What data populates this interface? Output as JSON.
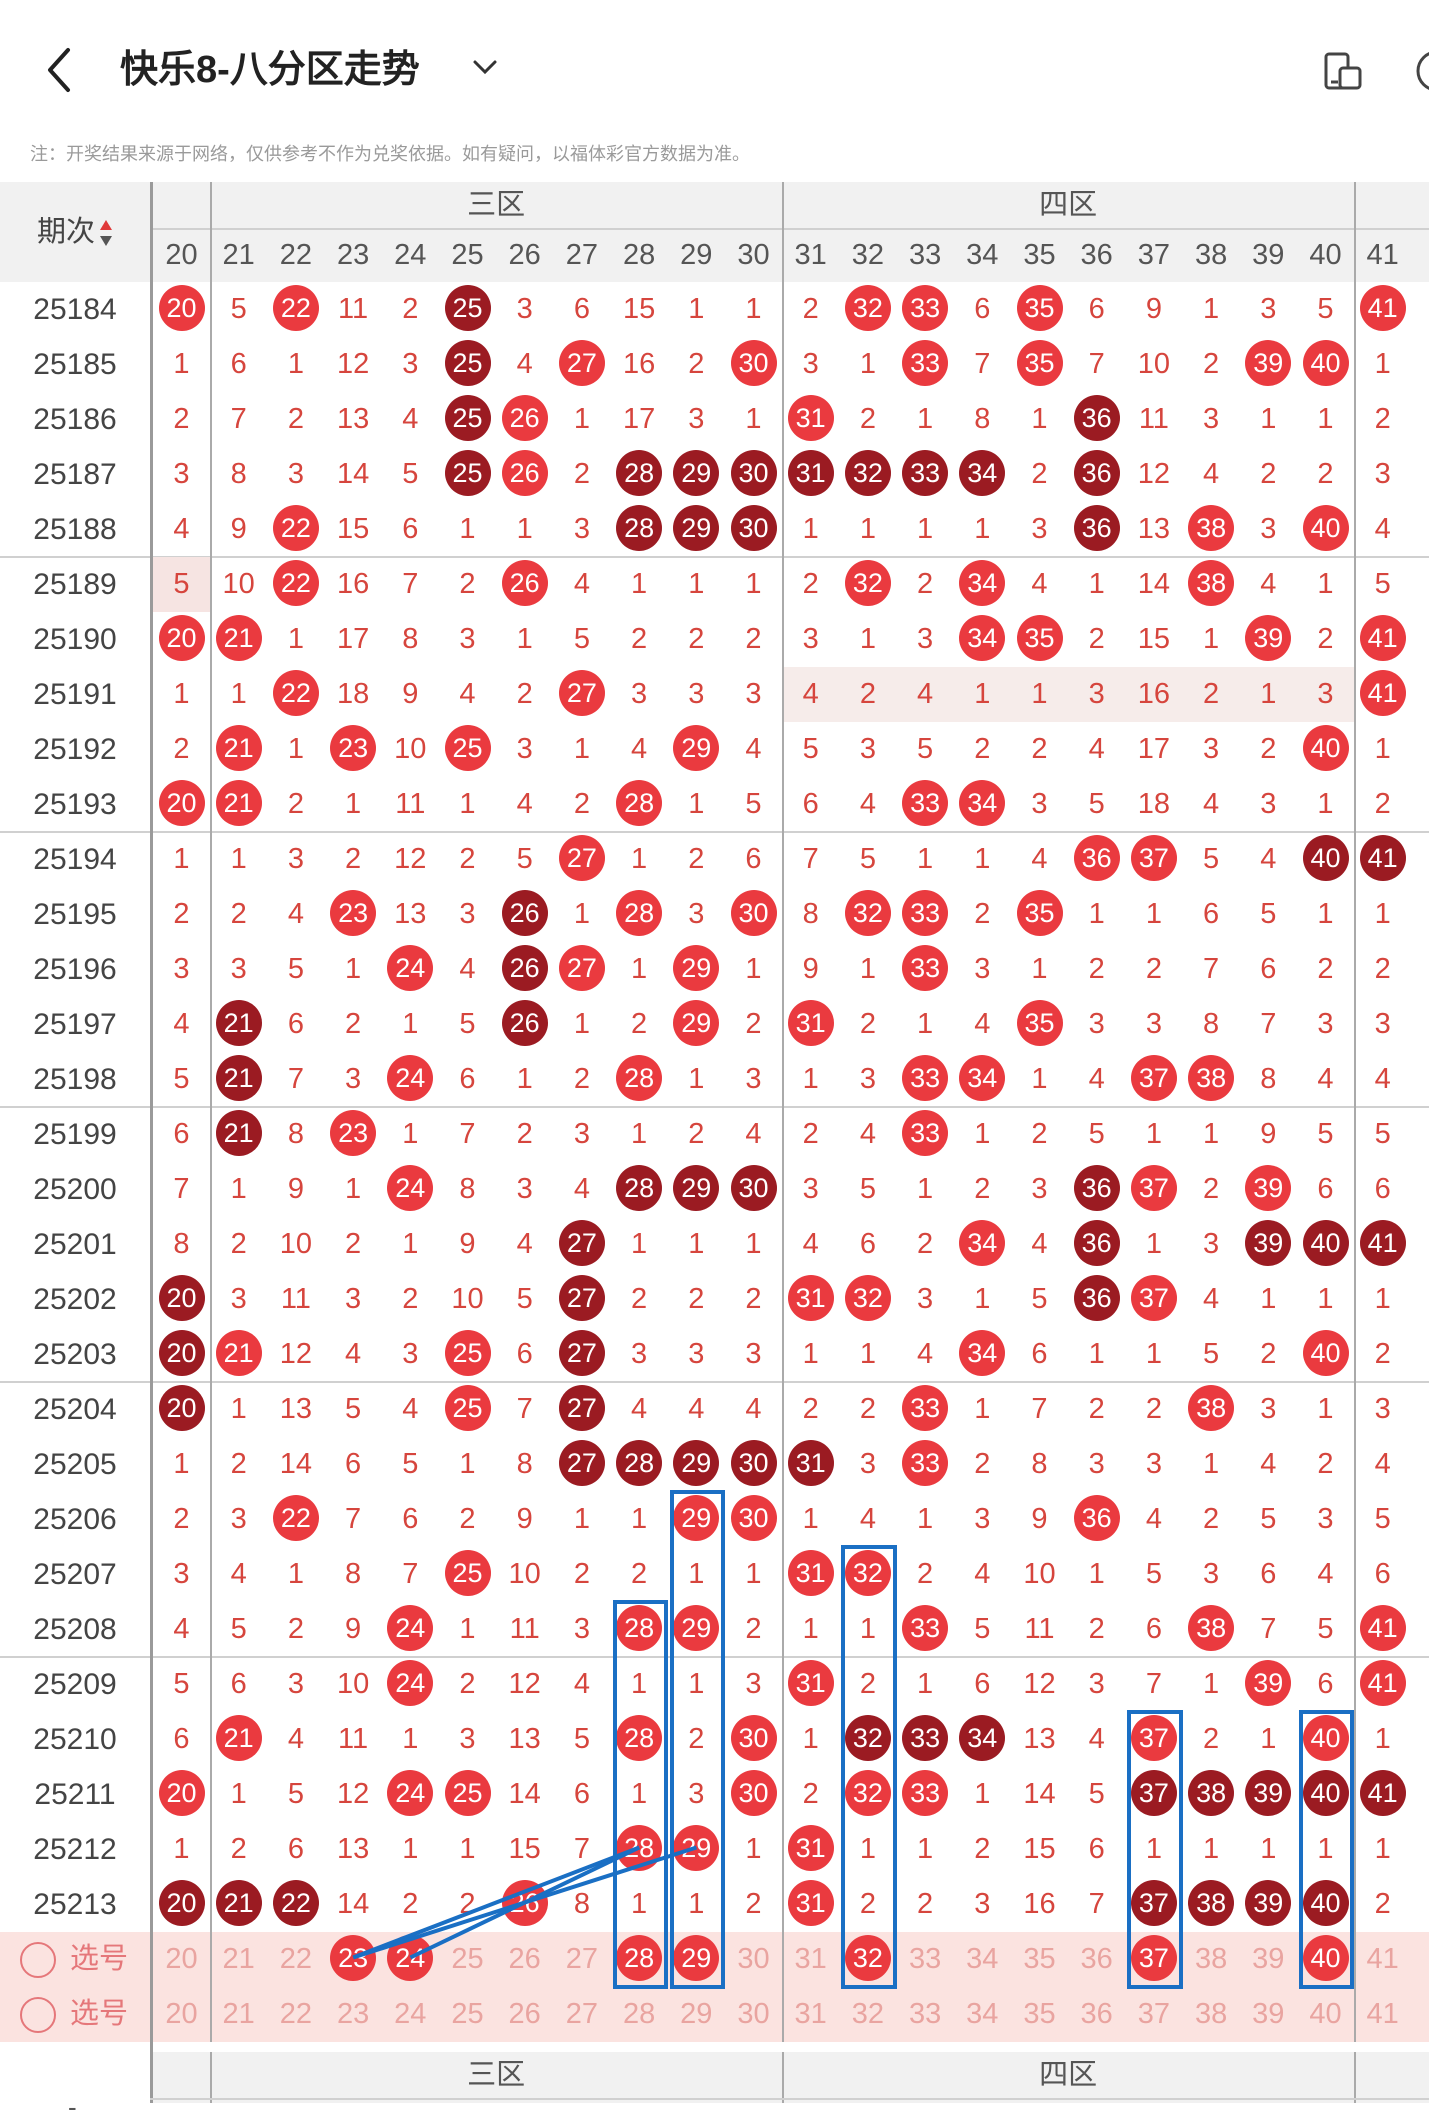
{
  "header": {
    "title": "快乐8-八分区走势",
    "note": "注：开奖结果来源于网络，仅供参考不作为兑奖依据。如有疑问，以福体彩官方数据为准。"
  },
  "table": {
    "period_label": "期次",
    "zones": [
      "三区",
      "四区"
    ],
    "columns": [
      20,
      21,
      22,
      23,
      24,
      25,
      26,
      27,
      28,
      29,
      30,
      31,
      32,
      33,
      34,
      35,
      36,
      37,
      38,
      39,
      40,
      41
    ],
    "rows": [
      {
        "period": "25184",
        "cells": [
          "20b",
          "5",
          "22b",
          "11",
          "2",
          "25d",
          "3",
          "6",
          "15",
          "1",
          "1",
          "2",
          "32b",
          "33b",
          "6",
          "35b",
          "6",
          "9",
          "1",
          "3",
          "5",
          "41b"
        ]
      },
      {
        "period": "25185",
        "cells": [
          "1",
          "6",
          "1",
          "12",
          "3",
          "25d",
          "4",
          "27b",
          "16",
          "2",
          "30b",
          "3",
          "1",
          "33b",
          "7",
          "35b",
          "7",
          "10",
          "2",
          "39b",
          "40b",
          "1"
        ]
      },
      {
        "period": "25186",
        "cells": [
          "2",
          "7",
          "2",
          "13",
          "4",
          "25d",
          "26b",
          "1",
          "17",
          "3",
          "1",
          "31b",
          "2",
          "1",
          "8",
          "1",
          "36d",
          "11",
          "3",
          "1",
          "1",
          "2"
        ]
      },
      {
        "period": "25187",
        "cells": [
          "3",
          "8",
          "3",
          "14",
          "5",
          "25d",
          "26b",
          "2",
          "28d",
          "29d",
          "30d",
          "31d",
          "32d",
          "33d",
          "34d",
          "2",
          "36d",
          "12",
          "4",
          "2",
          "2",
          "3"
        ]
      },
      {
        "period": "25188",
        "cells": [
          "4",
          "9",
          "22b",
          "15",
          "6",
          "1",
          "1",
          "3",
          "28d",
          "29d",
          "30d",
          "1",
          "1",
          "1",
          "1",
          "3",
          "36d",
          "13",
          "38b",
          "3",
          "40b",
          "4"
        ]
      },
      {
        "period": "25189",
        "cells": [
          "5",
          "10",
          "22b",
          "16",
          "7",
          "2",
          "26b",
          "4",
          "1",
          "1",
          "1",
          "2",
          "32b",
          "2",
          "34b",
          "4",
          "1",
          "14",
          "38b",
          "4",
          "1",
          "5"
        ]
      },
      {
        "period": "25190",
        "cells": [
          "20b",
          "21b",
          "1",
          "17",
          "8",
          "3",
          "1",
          "5",
          "2",
          "2",
          "2",
          "3",
          "1",
          "3",
          "34b",
          "35b",
          "2",
          "15",
          "1",
          "39b",
          "2",
          "41b"
        ]
      },
      {
        "period": "25191",
        "cells": [
          "1",
          "1",
          "22b",
          "18",
          "9",
          "4",
          "2",
          "27b",
          "3",
          "3",
          "3",
          "4",
          "2",
          "4",
          "1",
          "1",
          "3",
          "16",
          "2",
          "1",
          "3",
          "41b"
        ]
      },
      {
        "period": "25192",
        "cells": [
          "2",
          "21b",
          "1",
          "23b",
          "10",
          "25b",
          "3",
          "1",
          "4",
          "29b",
          "4",
          "5",
          "3",
          "5",
          "2",
          "2",
          "4",
          "17",
          "3",
          "2",
          "40b",
          "1"
        ]
      },
      {
        "period": "25193",
        "cells": [
          "20b",
          "21b",
          "2",
          "1",
          "11",
          "1",
          "4",
          "2",
          "28b",
          "1",
          "5",
          "6",
          "4",
          "33b",
          "34b",
          "3",
          "5",
          "18",
          "4",
          "3",
          "1",
          "2"
        ]
      },
      {
        "period": "25194",
        "cells": [
          "1",
          "1",
          "3",
          "2",
          "12",
          "2",
          "5",
          "27b",
          "1",
          "2",
          "6",
          "7",
          "5",
          "1",
          "1",
          "4",
          "36b",
          "37b",
          "5",
          "4",
          "40d",
          "41d"
        ]
      },
      {
        "period": "25195",
        "cells": [
          "2",
          "2",
          "4",
          "23b",
          "13",
          "3",
          "26d",
          "1",
          "28b",
          "3",
          "30b",
          "8",
          "32b",
          "33b",
          "2",
          "35b",
          "1",
          "1",
          "6",
          "5",
          "1",
          "1"
        ]
      },
      {
        "period": "25196",
        "cells": [
          "3",
          "3",
          "5",
          "1",
          "24b",
          "4",
          "26d",
          "27b",
          "1",
          "29b",
          "1",
          "9",
          "1",
          "33b",
          "3",
          "1",
          "2",
          "2",
          "7",
          "6",
          "2",
          "2"
        ]
      },
      {
        "period": "25197",
        "cells": [
          "4",
          "21d",
          "6",
          "2",
          "1",
          "5",
          "26d",
          "1",
          "2",
          "29b",
          "2",
          "31b",
          "2",
          "1",
          "4",
          "35b",
          "3",
          "3",
          "8",
          "7",
          "3",
          "3"
        ]
      },
      {
        "period": "25198",
        "cells": [
          "5",
          "21d",
          "7",
          "3",
          "24b",
          "6",
          "1",
          "2",
          "28b",
          "1",
          "3",
          "1",
          "3",
          "33b",
          "34b",
          "1",
          "4",
          "37b",
          "38b",
          "8",
          "4",
          "4"
        ]
      },
      {
        "period": "25199",
        "cells": [
          "6",
          "21d",
          "8",
          "23b",
          "1",
          "7",
          "2",
          "3",
          "1",
          "2",
          "4",
          "2",
          "4",
          "33b",
          "1",
          "2",
          "5",
          "1",
          "1",
          "9",
          "5",
          "5"
        ]
      },
      {
        "period": "25200",
        "cells": [
          "7",
          "1",
          "9",
          "1",
          "24b",
          "8",
          "3",
          "4",
          "28d",
          "29d",
          "30d",
          "3",
          "5",
          "1",
          "2",
          "3",
          "36d",
          "37b",
          "2",
          "39b",
          "6",
          "6"
        ]
      },
      {
        "period": "25201",
        "cells": [
          "8",
          "2",
          "10",
          "2",
          "1",
          "9",
          "4",
          "27d",
          "1",
          "1",
          "1",
          "4",
          "6",
          "2",
          "34b",
          "4",
          "36d",
          "1",
          "3",
          "39d",
          "40d",
          "41d"
        ]
      },
      {
        "period": "25202",
        "cells": [
          "20d",
          "3",
          "11",
          "3",
          "2",
          "10",
          "5",
          "27d",
          "2",
          "2",
          "2",
          "31b",
          "32b",
          "3",
          "1",
          "5",
          "36d",
          "37b",
          "4",
          "1",
          "1",
          "1"
        ]
      },
      {
        "period": "25203",
        "cells": [
          "20d",
          "21b",
          "12",
          "4",
          "3",
          "25b",
          "6",
          "27d",
          "3",
          "3",
          "3",
          "1",
          "1",
          "4",
          "34b",
          "6",
          "1",
          "1",
          "5",
          "2",
          "40b",
          "2"
        ]
      },
      {
        "period": "25204",
        "cells": [
          "20d",
          "1",
          "13",
          "5",
          "4",
          "25b",
          "7",
          "27d",
          "4",
          "4",
          "4",
          "2",
          "2",
          "33b",
          "1",
          "7",
          "2",
          "2",
          "38b",
          "3",
          "1",
          "3"
        ]
      },
      {
        "period": "25205",
        "cells": [
          "1",
          "2",
          "14",
          "6",
          "5",
          "1",
          "8",
          "27d",
          "28d",
          "29d",
          "30d",
          "31d",
          "3",
          "33b",
          "2",
          "8",
          "3",
          "3",
          "1",
          "4",
          "2",
          "4"
        ]
      },
      {
        "period": "25206",
        "cells": [
          "2",
          "3",
          "22b",
          "7",
          "6",
          "2",
          "9",
          "1",
          "1",
          "29b",
          "30b",
          "1",
          "4",
          "1",
          "3",
          "9",
          "36b",
          "4",
          "2",
          "5",
          "3",
          "5"
        ]
      },
      {
        "period": "25207",
        "cells": [
          "3",
          "4",
          "1",
          "8",
          "7",
          "25b",
          "10",
          "2",
          "2",
          "1",
          "1",
          "31b",
          "32b",
          "2",
          "4",
          "10",
          "1",
          "5",
          "3",
          "6",
          "4",
          "6"
        ]
      },
      {
        "period": "25208",
        "cells": [
          "4",
          "5",
          "2",
          "9",
          "24b",
          "1",
          "11",
          "3",
          "28b",
          "29b",
          "2",
          "1",
          "1",
          "33b",
          "5",
          "11",
          "2",
          "6",
          "38b",
          "7",
          "5",
          "41b"
        ]
      },
      {
        "period": "25209",
        "cells": [
          "5",
          "6",
          "3",
          "10",
          "24b",
          "2",
          "12",
          "4",
          "1",
          "1",
          "3",
          "31b",
          "2",
          "1",
          "6",
          "12",
          "3",
          "7",
          "1",
          "39b",
          "6",
          "41b"
        ]
      },
      {
        "period": "25210",
        "cells": [
          "6",
          "21b",
          "4",
          "11",
          "1",
          "3",
          "13",
          "5",
          "28b",
          "2",
          "30b",
          "1",
          "32d",
          "33d",
          "34d",
          "13",
          "4",
          "37b",
          "2",
          "1",
          "40b",
          "1"
        ]
      },
      {
        "period": "25211",
        "cells": [
          "20b",
          "1",
          "5",
          "12",
          "24b",
          "25b",
          "14",
          "6",
          "1",
          "3",
          "30b",
          "2",
          "32b",
          "33b",
          "1",
          "14",
          "5",
          "37d",
          "38d",
          "39d",
          "40d",
          "41d"
        ]
      },
      {
        "period": "25212",
        "cells": [
          "1",
          "2",
          "6",
          "13",
          "1",
          "1",
          "15",
          "7",
          "28b",
          "29b",
          "1",
          "31b",
          "1",
          "1",
          "2",
          "15",
          "6",
          "1",
          "1",
          "1",
          "1",
          "1"
        ]
      },
      {
        "period": "25213",
        "cells": [
          "20d",
          "21d",
          "22d",
          "14",
          "2",
          "2",
          "26b",
          "8",
          "1",
          "1",
          "2",
          "31b",
          "2",
          "2",
          "3",
          "16",
          "7",
          "37d",
          "38d",
          "39d",
          "40d",
          "2"
        ]
      }
    ],
    "select_label": "选号",
    "select_rows": [
      {
        "selected": [
          23,
          24,
          28,
          29,
          32,
          37,
          40
        ]
      },
      {
        "selected": []
      }
    ],
    "footer_zones": [
      "三区",
      "四区"
    ],
    "footer_hint": "-"
  },
  "colors": {
    "ball_red": "#ea3a3f",
    "ball_dark": "#9b1b22",
    "text_red": "#d6453d",
    "box_blue": "#1a6fc4"
  },
  "icons": [
    "back-arrow-icon",
    "chevron-down-icon",
    "device-layout-icon",
    "more-icon",
    "sort-arrows-icon"
  ]
}
